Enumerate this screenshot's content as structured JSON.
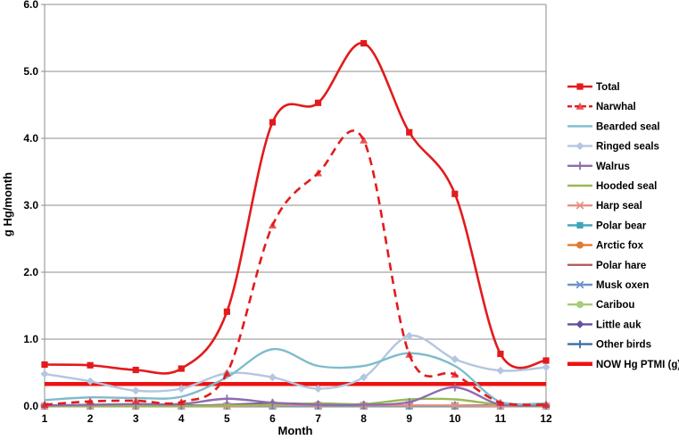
{
  "chart_data": {
    "type": "line",
    "xlabel": "Month",
    "ylabel": "g Hg/month",
    "x": [
      1,
      2,
      3,
      4,
      5,
      6,
      7,
      8,
      9,
      10,
      11,
      12
    ],
    "x_tick_labels": [
      "1",
      "2",
      "3",
      "4",
      "5",
      "6",
      "7",
      "8",
      "9",
      "10",
      "11",
      "12"
    ],
    "xlim": [
      1,
      12
    ],
    "ylim": [
      0,
      6
    ],
    "y_tick_labels": [
      "0.0",
      "1.0",
      "2.0",
      "3.0",
      "4.0",
      "5.0",
      "6.0"
    ],
    "grid": "horizontal",
    "legend_position": "right",
    "series": [
      {
        "name": "Total",
        "color": "#e31a1c",
        "marker": "square",
        "dash": "solid",
        "values": [
          0.62,
          0.61,
          0.54,
          0.56,
          1.41,
          4.24,
          4.53,
          5.42,
          4.09,
          3.17,
          0.78,
          0.68
        ]
      },
      {
        "name": "Narwhal",
        "color": "#e31a1c",
        "marker": "triangle",
        "dash": "dashed",
        "values": [
          0.02,
          0.07,
          0.08,
          0.06,
          0.49,
          2.7,
          3.48,
          3.97,
          0.77,
          0.47,
          0.05,
          0.02
        ]
      },
      {
        "name": "Bearded seal",
        "color": "#7fbccb",
        "marker": "none",
        "dash": "solid",
        "values": [
          0.09,
          0.13,
          0.12,
          0.14,
          0.43,
          0.85,
          0.6,
          0.6,
          0.79,
          0.6,
          0.06,
          0.04
        ]
      },
      {
        "name": "Ringed seals",
        "color": "#b4c6e0",
        "marker": "diamond",
        "dash": "solid",
        "values": [
          0.48,
          0.37,
          0.23,
          0.26,
          0.49,
          0.43,
          0.26,
          0.43,
          1.05,
          0.7,
          0.53,
          0.58
        ]
      },
      {
        "name": "Walrus",
        "color": "#8e6cae",
        "marker": "plus",
        "dash": "solid",
        "values": [
          0.01,
          0.02,
          0.03,
          0.03,
          0.11,
          0.05,
          0.02,
          0.02,
          0.06,
          0.28,
          0.02,
          0.01
        ]
      },
      {
        "name": "Hooded seal",
        "color": "#98b954",
        "marker": "none",
        "dash": "solid",
        "values": [
          0.0,
          0.0,
          0.0,
          0.0,
          0.01,
          0.02,
          0.04,
          0.03,
          0.1,
          0.1,
          0.02,
          0.0
        ]
      },
      {
        "name": "Harp seal",
        "color": "#e88f86",
        "marker": "x",
        "dash": "solid",
        "values": [
          0.0,
          0.0,
          0.0,
          0.0,
          0.0,
          0.01,
          0.01,
          0.01,
          0.01,
          0.01,
          0.0,
          0.0
        ]
      },
      {
        "name": "Polar bear",
        "color": "#3fa4b9",
        "marker": "square",
        "dash": "solid",
        "values": [
          0.0,
          0.0,
          0.0,
          0.0,
          0.0,
          0.0,
          0.0,
          0.0,
          0.0,
          0.0,
          0.0,
          0.0
        ]
      },
      {
        "name": "Arctic fox",
        "color": "#e07c32",
        "marker": "circle",
        "dash": "solid",
        "values": [
          0.0,
          0.0,
          0.0,
          0.0,
          0.0,
          0.0,
          0.0,
          0.0,
          0.0,
          0.0,
          0.0,
          0.0
        ]
      },
      {
        "name": "Polar hare",
        "color": "#b35e58",
        "marker": "none",
        "dash": "solid",
        "values": [
          0.0,
          0.0,
          0.0,
          0.0,
          0.0,
          0.0,
          0.0,
          0.0,
          0.0,
          0.0,
          0.0,
          0.0
        ]
      },
      {
        "name": "Musk oxen",
        "color": "#6e93c9",
        "marker": "x",
        "dash": "solid",
        "values": [
          0.0,
          0.0,
          0.0,
          0.0,
          0.0,
          0.0,
          0.0,
          0.0,
          0.0,
          0.0,
          0.0,
          0.0
        ]
      },
      {
        "name": "Caribou",
        "color": "#a6cc78",
        "marker": "circle",
        "dash": "solid",
        "values": [
          0.0,
          0.0,
          0.0,
          0.0,
          0.0,
          0.0,
          0.0,
          0.0,
          0.0,
          0.0,
          0.0,
          0.0
        ]
      },
      {
        "name": "Little auk",
        "color": "#6a4f9c",
        "marker": "diamond",
        "dash": "solid",
        "values": [
          0.0,
          0.0,
          0.0,
          0.0,
          0.02,
          0.04,
          0.03,
          0.02,
          0.01,
          0.0,
          0.0,
          0.0
        ]
      },
      {
        "name": "Other birds",
        "color": "#3b6ea5",
        "marker": "plus",
        "dash": "solid",
        "values": [
          0.01,
          0.01,
          0.01,
          0.01,
          0.01,
          0.01,
          0.01,
          0.01,
          0.01,
          0.01,
          0.01,
          0.01
        ]
      },
      {
        "name": "NOW Hg PTMI (g)",
        "color": "#ee1111",
        "marker": "none",
        "dash": "thick",
        "values": [
          0.33,
          0.33,
          0.33,
          0.33,
          0.33,
          0.33,
          0.33,
          0.33,
          0.33,
          0.33,
          0.33,
          0.33
        ]
      }
    ]
  }
}
